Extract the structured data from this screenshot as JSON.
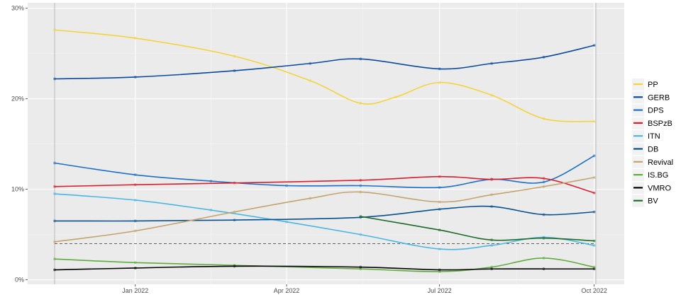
{
  "chart_data": {
    "type": "line",
    "x_axis": {
      "type": "date",
      "range": [
        "2021-11-14",
        "2022-10-02"
      ],
      "ticks": [
        {
          "date": "2022-01-01",
          "label": "Jan 2022"
        },
        {
          "date": "2022-04-01",
          "label": "Apr 2022"
        },
        {
          "date": "2022-07-01",
          "label": "Jul 2022"
        },
        {
          "date": "2022-10-01",
          "label": "Oct 2022"
        }
      ],
      "vertical_reference_lines": [
        "2021-11-14",
        "2022-10-02"
      ]
    },
    "y_axis": {
      "range": [
        -0.5,
        30.6
      ],
      "ticks": [
        {
          "value": 0,
          "label": "0%"
        },
        {
          "value": 10,
          "label": "10%"
        },
        {
          "value": 20,
          "label": "20%"
        },
        {
          "value": 30,
          "label": "30%"
        }
      ]
    },
    "threshold_line": {
      "value": 4,
      "style": "dashed"
    },
    "grid": true,
    "legend": {
      "position": "right"
    },
    "series": [
      {
        "name": "PP",
        "color": "#f5d33f",
        "x": [
          "2021-11-14",
          "2022-01-01",
          "2022-03-01",
          "2022-04-15",
          "2022-05-15",
          "2022-06-05",
          "2022-07-01",
          "2022-08-01",
          "2022-09-01",
          "2022-10-01"
        ],
        "y": [
          27.6,
          26.7,
          24.7,
          22.0,
          19.5,
          20.2,
          21.8,
          20.4,
          17.8,
          17.5
        ]
      },
      {
        "name": "GERB",
        "color": "#0a4a9c",
        "x": [
          "2021-11-14",
          "2022-01-01",
          "2022-03-01",
          "2022-04-15",
          "2022-05-15",
          "2022-07-01",
          "2022-08-01",
          "2022-09-01",
          "2022-10-01"
        ],
        "y": [
          22.2,
          22.4,
          23.1,
          23.9,
          24.4,
          23.3,
          23.9,
          24.6,
          25.9
        ]
      },
      {
        "name": "DPS",
        "color": "#1c6fc4",
        "x": [
          "2021-11-14",
          "2022-01-01",
          "2022-02-15",
          "2022-04-01",
          "2022-05-15",
          "2022-07-01",
          "2022-08-01",
          "2022-09-01",
          "2022-10-01"
        ],
        "y": [
          12.9,
          11.6,
          10.9,
          10.4,
          10.4,
          10.2,
          11.1,
          10.8,
          13.7
        ]
      },
      {
        "name": "BSPzB",
        "color": "#d91e2e",
        "x": [
          "2021-11-14",
          "2022-01-01",
          "2022-03-01",
          "2022-05-15",
          "2022-07-01",
          "2022-08-01",
          "2022-09-01",
          "2022-10-01"
        ],
        "y": [
          10.3,
          10.5,
          10.7,
          11.0,
          11.4,
          11.1,
          11.2,
          9.6
        ]
      },
      {
        "name": "ITN",
        "color": "#4cb6e3",
        "x": [
          "2021-11-14",
          "2022-01-01",
          "2022-02-15",
          "2022-04-01",
          "2022-05-15",
          "2022-07-01",
          "2022-08-01",
          "2022-09-01",
          "2022-10-01"
        ],
        "y": [
          9.5,
          8.8,
          7.7,
          6.4,
          5.0,
          3.4,
          3.8,
          4.7,
          3.8
        ]
      },
      {
        "name": "DB",
        "color": "#07508f",
        "x": [
          "2021-11-14",
          "2022-01-01",
          "2022-03-01",
          "2022-05-15",
          "2022-07-01",
          "2022-08-01",
          "2022-09-01",
          "2022-10-01"
        ],
        "y": [
          6.5,
          6.5,
          6.6,
          6.9,
          7.8,
          8.1,
          7.2,
          7.5
        ]
      },
      {
        "name": "Revival",
        "color": "#c4a36d",
        "x": [
          "2021-11-14",
          "2022-01-01",
          "2022-03-01",
          "2022-04-15",
          "2022-05-15",
          "2022-07-01",
          "2022-08-01",
          "2022-09-01",
          "2022-10-01"
        ],
        "y": [
          4.2,
          5.4,
          7.5,
          9.0,
          9.7,
          8.6,
          9.4,
          10.3,
          11.3
        ]
      },
      {
        "name": "IS.BG",
        "color": "#5fad3f",
        "x": [
          "2021-11-14",
          "2022-01-01",
          "2022-03-01",
          "2022-05-15",
          "2022-07-01",
          "2022-08-01",
          "2022-09-01",
          "2022-10-01"
        ],
        "y": [
          2.3,
          1.9,
          1.6,
          1.2,
          0.9,
          1.4,
          2.4,
          1.4
        ]
      },
      {
        "name": "VMRO",
        "color": "#000000",
        "x": [
          "2021-11-14",
          "2022-01-01",
          "2022-03-01",
          "2022-05-15",
          "2022-07-01",
          "2022-08-01",
          "2022-09-01",
          "2022-10-01"
        ],
        "y": [
          1.1,
          1.3,
          1.5,
          1.4,
          1.1,
          1.2,
          1.2,
          1.2
        ]
      },
      {
        "name": "BV",
        "color": "#1b6b2a",
        "x": [
          "2022-05-15",
          "2022-07-01",
          "2022-08-01",
          "2022-09-01",
          "2022-10-01"
        ],
        "y": [
          7.0,
          5.5,
          4.4,
          4.6,
          4.3
        ]
      }
    ]
  }
}
